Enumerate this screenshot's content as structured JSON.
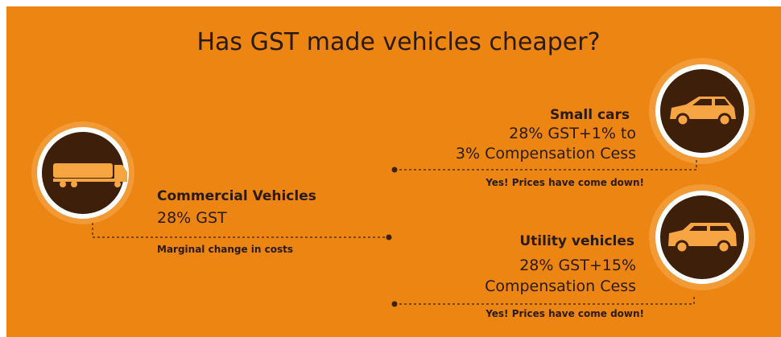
{
  "title": "Has GST made vehicles cheaper?",
  "items": [
    {
      "name": "Small cars",
      "rate": [
        "28% GST+1% to",
        "3% Compensation Cess"
      ],
      "note": "Yes! Prices have come down!"
    },
    {
      "name": "Commercial Vehicles",
      "rate": [
        "28% GST"
      ],
      "note": "Marginal change in costs"
    },
    {
      "name": "Utility vehicles",
      "rate": [
        "28% GST+15%",
        "Compensation Cess"
      ],
      "note": "Yes! Prices have come down!"
    }
  ]
}
